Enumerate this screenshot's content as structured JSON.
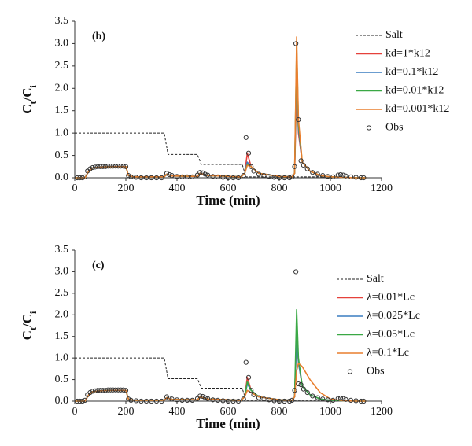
{
  "chart_data": [
    {
      "type": "line",
      "panel_label": "(b)",
      "xlabel": "Time (min)",
      "ylabel": [
        "C",
        "t",
        "/C",
        "i"
      ],
      "xlim": [
        0,
        1200
      ],
      "xticks": [
        0,
        200,
        400,
        600,
        800,
        1000,
        1200
      ],
      "ylim": [
        0,
        3.5
      ],
      "yticks": [
        {
          "value": 0,
          "label": "0.0"
        },
        0.5,
        {
          "value": 1,
          "label": "1.0"
        },
        1.5,
        {
          "value": 2,
          "label": "2.0"
        },
        2.5,
        {
          "value": 3,
          "label": "3.0"
        },
        3.5
      ],
      "legend": "upper right",
      "series": [
        {
          "name": "Salt",
          "color": "#222222",
          "style": "dashed",
          "x": [
            0,
            350,
            365,
            480,
            495,
            655,
            670,
            1000
          ],
          "values": [
            1,
            1,
            0.52,
            0.52,
            0.3,
            0.3,
            0.02,
            0.02
          ]
        },
        {
          "name": "kd=1*k12",
          "color": "#e5413b",
          "style": "solid",
          "x": [
            0,
            40,
            55,
            70,
            100,
            150,
            200,
            210,
            230,
            350,
            360,
            380,
            480,
            490,
            520,
            650,
            665,
            675,
            690,
            720,
            800,
            850,
            860,
            868,
            875,
            890,
            920,
            960,
            1000,
            1050,
            1100,
            1140
          ],
          "values": [
            0,
            0,
            0.15,
            0.22,
            0.24,
            0.25,
            0.25,
            0.05,
            0.02,
            0.02,
            0.08,
            0.04,
            0.03,
            0.1,
            0.05,
            0.02,
            0.1,
            0.55,
            0.25,
            0.1,
            0.03,
            0.02,
            0.1,
            2.1,
            1.0,
            0.35,
            0.15,
            0.05,
            0.02,
            0.01,
            0,
            0
          ]
        },
        {
          "name": "kd=0.1*k12",
          "color": "#3a7dc0",
          "style": "solid",
          "x": [
            0,
            40,
            55,
            70,
            100,
            150,
            200,
            210,
            230,
            350,
            360,
            380,
            480,
            490,
            520,
            650,
            665,
            675,
            690,
            720,
            800,
            850,
            860,
            868,
            875,
            890,
            920,
            960,
            1000,
            1050,
            1100,
            1140
          ],
          "values": [
            0,
            0,
            0.15,
            0.22,
            0.24,
            0.25,
            0.25,
            0.05,
            0.02,
            0.02,
            0.08,
            0.04,
            0.03,
            0.1,
            0.05,
            0.02,
            0.1,
            0.35,
            0.25,
            0.1,
            0.03,
            0.02,
            0.1,
            2.55,
            1.1,
            0.35,
            0.15,
            0.05,
            0.02,
            0.01,
            0,
            0
          ]
        },
        {
          "name": "kd=0.01*k12",
          "color": "#3aa845",
          "style": "solid",
          "x": [
            0,
            40,
            55,
            70,
            100,
            150,
            200,
            210,
            230,
            350,
            360,
            380,
            480,
            490,
            520,
            650,
            665,
            675,
            690,
            720,
            800,
            850,
            860,
            868,
            875,
            890,
            920,
            960,
            1000,
            1050,
            1100,
            1140
          ],
          "values": [
            0,
            0,
            0.15,
            0.22,
            0.24,
            0.25,
            0.25,
            0.05,
            0.02,
            0.02,
            0.08,
            0.04,
            0.03,
            0.1,
            0.05,
            0.02,
            0.1,
            0.3,
            0.25,
            0.1,
            0.03,
            0.02,
            0.1,
            2.95,
            1.2,
            0.35,
            0.15,
            0.05,
            0.02,
            0.01,
            0,
            0
          ]
        },
        {
          "name": "kd=0.001*k12",
          "color": "#e97f2e",
          "style": "solid",
          "x": [
            0,
            40,
            55,
            70,
            100,
            150,
            200,
            210,
            230,
            350,
            360,
            380,
            480,
            490,
            520,
            650,
            665,
            675,
            690,
            720,
            800,
            850,
            860,
            868,
            875,
            890,
            920,
            960,
            1000,
            1050,
            1100,
            1140
          ],
          "values": [
            0,
            0,
            0.15,
            0.22,
            0.24,
            0.25,
            0.25,
            0.05,
            0.02,
            0.02,
            0.08,
            0.04,
            0.03,
            0.1,
            0.05,
            0.02,
            0.1,
            0.28,
            0.25,
            0.1,
            0.03,
            0.02,
            0.1,
            3.15,
            1.3,
            0.35,
            0.15,
            0.05,
            0.02,
            0.01,
            0,
            0
          ]
        },
        {
          "name": "Obs",
          "color": "#333333",
          "style": "markers",
          "x": [
            10,
            20,
            30,
            40,
            50,
            60,
            70,
            80,
            90,
            100,
            110,
            120,
            130,
            140,
            150,
            160,
            170,
            180,
            190,
            200,
            210,
            220,
            240,
            260,
            280,
            300,
            320,
            340,
            360,
            370,
            380,
            400,
            420,
            440,
            460,
            480,
            490,
            500,
            510,
            520,
            540,
            560,
            580,
            600,
            620,
            640,
            660,
            670,
            680,
            690,
            700,
            720,
            740,
            760,
            780,
            800,
            820,
            840,
            850,
            860,
            865,
            875,
            885,
            895,
            910,
            930,
            950,
            970,
            990,
            1010,
            1030,
            1040,
            1050,
            1060,
            1080,
            1100,
            1120,
            1130
          ],
          "values": [
            0,
            0,
            0,
            0.02,
            0.15,
            0.2,
            0.23,
            0.24,
            0.25,
            0.25,
            0.25,
            0.25,
            0.26,
            0.26,
            0.26,
            0.26,
            0.26,
            0.26,
            0.26,
            0.25,
            0.05,
            0.02,
            0.01,
            0,
            0,
            0,
            0,
            0,
            0.1,
            0.07,
            0.05,
            0.03,
            0.02,
            0.02,
            0.02,
            0.06,
            0.12,
            0.11,
            0.08,
            0.06,
            0.03,
            0.02,
            0.01,
            0,
            0,
            0,
            0.05,
            0.9,
            0.55,
            0.25,
            0.15,
            0.08,
            0.05,
            0.03,
            0.01,
            0,
            0,
            0,
            0.02,
            0.25,
            3.0,
            1.3,
            0.38,
            0.28,
            0.2,
            0.12,
            0.08,
            0.05,
            0.03,
            0.02,
            0.06,
            0.07,
            0.06,
            0.04,
            0.02,
            0.01,
            0,
            0
          ]
        }
      ]
    },
    {
      "type": "line",
      "panel_label": "(c)",
      "xlabel": "Time (min)",
      "ylabel": [
        "C",
        "t",
        "/C",
        "i"
      ],
      "xlim": [
        0,
        1200
      ],
      "xticks": [
        0,
        200,
        400,
        600,
        800,
        1000,
        1200
      ],
      "ylim": [
        0,
        3.5
      ],
      "yticks": [
        {
          "value": 0,
          "label": "0.0"
        },
        0.5,
        {
          "value": 1,
          "label": "1.0"
        },
        1.5,
        {
          "value": 2,
          "label": "2.0"
        },
        2.5,
        {
          "value": 3,
          "label": "3.0"
        },
        3.5
      ],
      "legend": "upper right",
      "series": [
        {
          "name": "Salt",
          "color": "#222222",
          "style": "dashed",
          "x": [
            0,
            350,
            365,
            480,
            495,
            655,
            670,
            1000
          ],
          "values": [
            1,
            1,
            0.52,
            0.52,
            0.3,
            0.3,
            0.02,
            0.02
          ]
        },
        {
          "name": "λ=0.01*Lc",
          "color": "#e5413b",
          "style": "solid",
          "x": [
            0,
            40,
            55,
            70,
            100,
            150,
            200,
            210,
            230,
            350,
            360,
            380,
            480,
            490,
            520,
            650,
            665,
            675,
            690,
            720,
            800,
            850,
            860,
            868,
            875,
            890,
            920,
            960,
            1000,
            1050,
            1100,
            1140
          ],
          "values": [
            0,
            0,
            0.15,
            0.22,
            0.24,
            0.25,
            0.25,
            0.05,
            0.02,
            0.02,
            0.08,
            0.04,
            0.03,
            0.1,
            0.05,
            0.02,
            0.1,
            0.55,
            0.25,
            0.1,
            0.03,
            0.02,
            0.1,
            1.5,
            0.9,
            0.35,
            0.15,
            0.05,
            0.02,
            0.01,
            0,
            0
          ]
        },
        {
          "name": "λ=0.025*Lc",
          "color": "#3a7dc0",
          "style": "solid",
          "x": [
            0,
            40,
            55,
            70,
            100,
            150,
            200,
            210,
            230,
            350,
            360,
            380,
            480,
            490,
            520,
            650,
            665,
            675,
            690,
            720,
            800,
            850,
            860,
            868,
            875,
            890,
            920,
            960,
            1000,
            1050,
            1100,
            1140
          ],
          "values": [
            0,
            0,
            0.15,
            0.22,
            0.24,
            0.25,
            0.25,
            0.05,
            0.02,
            0.02,
            0.08,
            0.04,
            0.03,
            0.1,
            0.05,
            0.02,
            0.1,
            0.4,
            0.25,
            0.1,
            0.03,
            0.02,
            0.1,
            1.52,
            0.9,
            0.35,
            0.15,
            0.05,
            0.02,
            0.01,
            0,
            0
          ]
        },
        {
          "name": "λ=0.05*Lc",
          "color": "#3aa845",
          "style": "solid",
          "x": [
            0,
            40,
            55,
            70,
            100,
            150,
            200,
            210,
            230,
            350,
            360,
            380,
            480,
            490,
            520,
            650,
            665,
            675,
            690,
            720,
            800,
            850,
            860,
            868,
            875,
            890,
            920,
            960,
            1000,
            1050,
            1100,
            1140
          ],
          "values": [
            0,
            0,
            0.15,
            0.22,
            0.24,
            0.25,
            0.25,
            0.05,
            0.02,
            0.02,
            0.08,
            0.04,
            0.03,
            0.1,
            0.05,
            0.02,
            0.1,
            0.45,
            0.25,
            0.1,
            0.03,
            0.02,
            0.1,
            2.12,
            1.0,
            0.35,
            0.15,
            0.05,
            0.02,
            0.01,
            0,
            0
          ]
        },
        {
          "name": "λ=0.1*Lc",
          "color": "#e97f2e",
          "style": "solid",
          "x": [
            0,
            40,
            55,
            70,
            100,
            150,
            200,
            210,
            230,
            350,
            360,
            380,
            480,
            490,
            520,
            650,
            665,
            675,
            690,
            720,
            800,
            850,
            860,
            868,
            875,
            890,
            920,
            960,
            1000,
            1050,
            1100,
            1140
          ],
          "values": [
            0,
            0,
            0.15,
            0.22,
            0.24,
            0.25,
            0.25,
            0.05,
            0.02,
            0.02,
            0.08,
            0.04,
            0.03,
            0.1,
            0.05,
            0.02,
            0.1,
            0.25,
            0.2,
            0.1,
            0.03,
            0.02,
            0.1,
            0.7,
            0.88,
            0.8,
            0.5,
            0.2,
            0.05,
            0.01,
            0,
            0
          ]
        },
        {
          "name": "Obs",
          "color": "#333333",
          "style": "markers",
          "x": [
            10,
            20,
            30,
            40,
            50,
            60,
            70,
            80,
            90,
            100,
            110,
            120,
            130,
            140,
            150,
            160,
            170,
            180,
            190,
            200,
            210,
            220,
            240,
            260,
            280,
            300,
            320,
            340,
            360,
            370,
            380,
            400,
            420,
            440,
            460,
            480,
            490,
            500,
            510,
            520,
            540,
            560,
            580,
            600,
            620,
            640,
            660,
            670,
            680,
            690,
            700,
            720,
            740,
            760,
            780,
            800,
            820,
            840,
            850,
            860,
            865,
            875,
            885,
            895,
            910,
            930,
            950,
            970,
            990,
            1010,
            1030,
            1040,
            1050,
            1060,
            1080,
            1100,
            1120,
            1130
          ],
          "values": [
            0,
            0,
            0,
            0.02,
            0.15,
            0.2,
            0.23,
            0.24,
            0.25,
            0.25,
            0.25,
            0.25,
            0.26,
            0.26,
            0.26,
            0.26,
            0.26,
            0.26,
            0.26,
            0.25,
            0.05,
            0.02,
            0.01,
            0,
            0,
            0,
            0,
            0,
            0.1,
            0.07,
            0.05,
            0.03,
            0.02,
            0.02,
            0.02,
            0.06,
            0.12,
            0.11,
            0.08,
            0.06,
            0.03,
            0.02,
            0.01,
            0,
            0,
            0,
            0.05,
            0.9,
            0.55,
            0.25,
            0.15,
            0.08,
            0.05,
            0.03,
            0.01,
            0,
            0,
            0,
            0.02,
            0.25,
            3.0,
            0.4,
            0.38,
            0.28,
            0.2,
            0.12,
            0.08,
            0.05,
            0.03,
            0.02,
            0.06,
            0.07,
            0.06,
            0.04,
            0.02,
            0.01,
            0,
            0
          ]
        }
      ]
    }
  ]
}
